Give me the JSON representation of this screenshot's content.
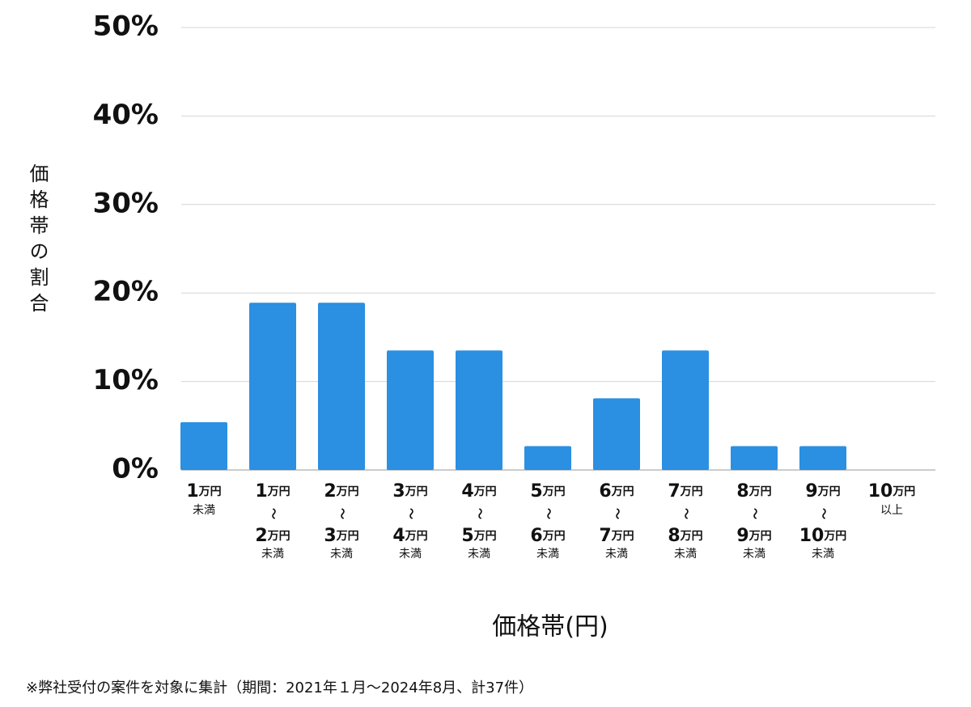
{
  "chart_data": {
    "type": "bar",
    "y_label": "価格帯の割合",
    "x_label": "価格帯(円)",
    "footnote": "※弊社受付の案件を対象に集計（期間：2021年１月～2024年8月、計37件）",
    "categories": [
      [
        "1万円",
        "未満"
      ],
      [
        "1万円",
        "〜",
        "2万円",
        "未満"
      ],
      [
        "2万円",
        "〜",
        "3万円",
        "未満"
      ],
      [
        "3万円",
        "〜",
        "4万円",
        "未満"
      ],
      [
        "4万円",
        "〜",
        "5万円",
        "未満"
      ],
      [
        "5万円",
        "〜",
        "6万円",
        "未満"
      ],
      [
        "6万円",
        "〜",
        "7万円",
        "未満"
      ],
      [
        "7万円",
        "〜",
        "8万円",
        "未満"
      ],
      [
        "8万円",
        "〜",
        "9万円",
        "未満"
      ],
      [
        "9万円",
        "〜",
        "10万円",
        "未満"
      ],
      [
        "10万円",
        "以上"
      ]
    ],
    "values": [
      5.4,
      18.9,
      18.9,
      13.5,
      13.5,
      2.7,
      8.1,
      13.5,
      2.7,
      2.7,
      0
    ],
    "color": "#2b8fe2",
    "ylim": [
      0,
      50
    ],
    "yticks": [
      {
        "value": 0,
        "label": "0%"
      },
      {
        "value": 10,
        "label": "10%"
      },
      {
        "value": 20,
        "label": "20%"
      },
      {
        "value": 30,
        "label": "30%"
      },
      {
        "value": 40,
        "label": "40%"
      },
      {
        "value": 50,
        "label": "50%"
      }
    ],
    "grid": true
  }
}
